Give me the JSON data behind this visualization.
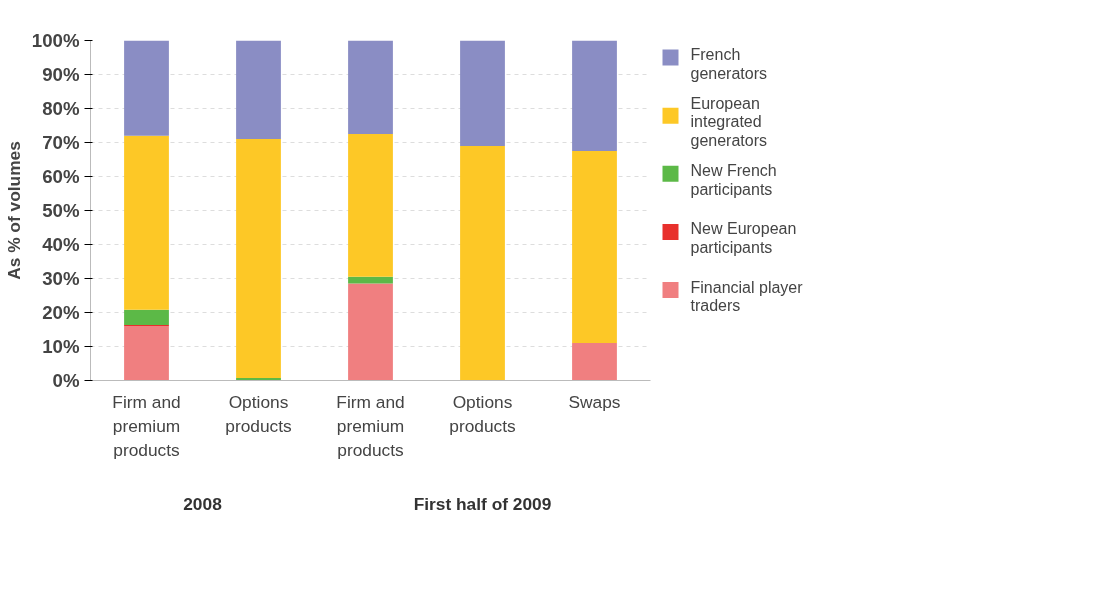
{
  "chart_data": {
    "type": "bar",
    "stacked": true,
    "ylabel": "As % of volumes",
    "categories": [
      "Firm and premium products",
      "Options products",
      "Firm and premium products",
      "Options products",
      "Swaps"
    ],
    "series": [
      {
        "name": "Financial player traders",
        "color": "#f07f80",
        "values": [
          16,
          0,
          28.5,
          0,
          11
        ]
      },
      {
        "name": "New European participants",
        "color": "#e8302c",
        "values": [
          0.3,
          0,
          0,
          0,
          0
        ]
      },
      {
        "name": "New French participants",
        "color": "#5cb947",
        "values": [
          4.5,
          0.7,
          2,
          0,
          0
        ]
      },
      {
        "name": "European integrated generators",
        "color": "#fdc826",
        "values": [
          51.2,
          70.3,
          42,
          69,
          56.5
        ]
      },
      {
        "name": "French generators",
        "color": "#8a8dc4",
        "values": [
          28,
          29,
          27.5,
          31,
          32.5
        ]
      }
    ],
    "ylim": [
      0,
      100
    ],
    "yticks": [
      {
        "value": 0,
        "label": "0%"
      },
      {
        "value": 10,
        "label": "10%"
      },
      {
        "value": 20,
        "label": "20%"
      },
      {
        "value": 30,
        "label": "30%"
      },
      {
        "value": 40,
        "label": "40%"
      },
      {
        "value": 50,
        "label": "50%"
      },
      {
        "value": 60,
        "label": "60%"
      },
      {
        "value": 70,
        "label": "70%"
      },
      {
        "value": 80,
        "label": "80%"
      },
      {
        "value": 90,
        "label": "90%"
      },
      {
        "value": 100,
        "label": "100%"
      }
    ],
    "grid": "y",
    "legend": "right",
    "annotations": [
      "2008",
      "First half of 2009"
    ]
  }
}
